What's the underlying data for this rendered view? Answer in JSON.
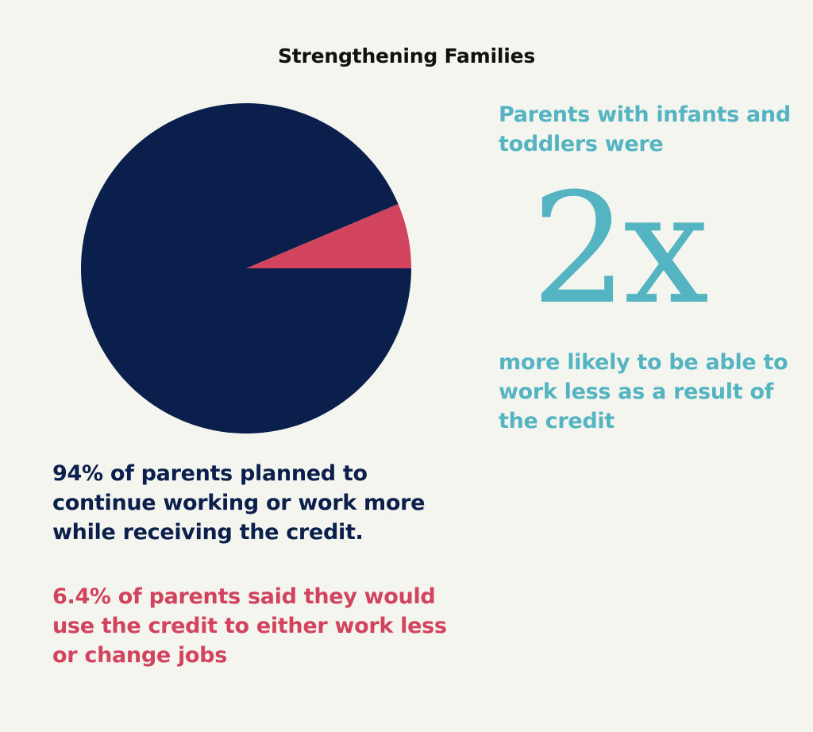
{
  "title": "Strengthening Families",
  "colors": {
    "navy": "#0a1f4b",
    "pink": "#d2445e",
    "teal": "#55b4c2",
    "background": "#f5f5f0"
  },
  "chart_data": {
    "type": "pie",
    "slices": [
      {
        "label": "94% of parents planned to continue working or work more while receiving the credit.",
        "value": 94,
        "color": "#0a1f4b"
      },
      {
        "label": "6.4% of parents said they would use the credit to either work less or change jobs",
        "value": 6.4,
        "color": "#d2445e"
      }
    ]
  },
  "left": {
    "stat_main": "94% of parents planned to continue working or work more while receiving the credit.",
    "stat_minor": "6.4% of parents said they would use the credit to either work less or change jobs"
  },
  "right": {
    "intro": "Parents with infants and toddlers were",
    "big_figure": "2x",
    "outro": "more likely to be able to work less as a result of the credit"
  }
}
